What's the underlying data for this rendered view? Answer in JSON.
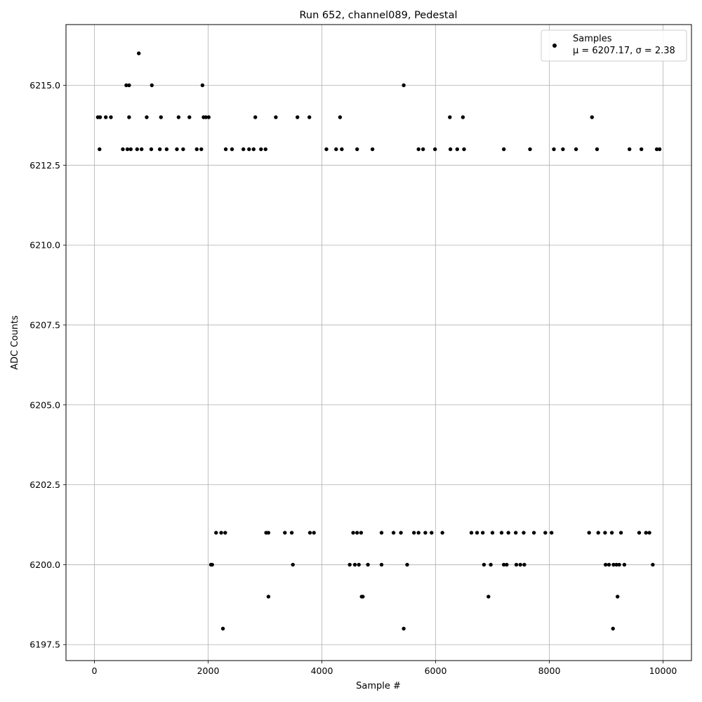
{
  "chart_data": {
    "type": "scatter",
    "title": "Run 652, channel089, Pedestal",
    "xlabel": "Sample #",
    "ylabel": "ADC Counts",
    "xlim": [
      -500,
      10500
    ],
    "ylim": [
      6197.0,
      6216.9
    ],
    "xticks": [
      0,
      2000,
      4000,
      6000,
      8000,
      10000
    ],
    "yticks": [
      6197.5,
      6200.0,
      6202.5,
      6205.0,
      6207.5,
      6210.0,
      6212.5,
      6215.0
    ],
    "xtick_labels": [
      "0",
      "2000",
      "4000",
      "6000",
      "8000",
      "10000"
    ],
    "ytick_labels": [
      "6197.5",
      "6200.0",
      "6202.5",
      "6205.0",
      "6207.5",
      "6210.0",
      "6212.5",
      "6215.0"
    ],
    "grid": true,
    "legend_position": "top-right",
    "marker_color": "#000000",
    "series": [
      {
        "name": "Samples",
        "legend_stats": "μ = 6207.17, σ = 2.38",
        "points": [
          [
            780,
            6216
          ],
          [
            560,
            6215
          ],
          [
            610,
            6215
          ],
          [
            1010,
            6215
          ],
          [
            1900,
            6215
          ],
          [
            5440,
            6215
          ],
          [
            60,
            6214
          ],
          [
            100,
            6214
          ],
          [
            200,
            6214
          ],
          [
            290,
            6214
          ],
          [
            610,
            6214
          ],
          [
            920,
            6214
          ],
          [
            1170,
            6214
          ],
          [
            1480,
            6214
          ],
          [
            1670,
            6214
          ],
          [
            1920,
            6214
          ],
          [
            1960,
            6214
          ],
          [
            2010,
            6214
          ],
          [
            2830,
            6214
          ],
          [
            3190,
            6214
          ],
          [
            3570,
            6214
          ],
          [
            3780,
            6214
          ],
          [
            4320,
            6214
          ],
          [
            6250,
            6214
          ],
          [
            6480,
            6214
          ],
          [
            8750,
            6214
          ],
          [
            90,
            6213
          ],
          [
            500,
            6213
          ],
          [
            580,
            6213
          ],
          [
            640,
            6213
          ],
          [
            750,
            6213
          ],
          [
            830,
            6213
          ],
          [
            1000,
            6213
          ],
          [
            1150,
            6213
          ],
          [
            1270,
            6213
          ],
          [
            1450,
            6213
          ],
          [
            1560,
            6213
          ],
          [
            1800,
            6213
          ],
          [
            1880,
            6213
          ],
          [
            2310,
            6213
          ],
          [
            2420,
            6213
          ],
          [
            2620,
            6213
          ],
          [
            2720,
            6213
          ],
          [
            2800,
            6213
          ],
          [
            2930,
            6213
          ],
          [
            3010,
            6213
          ],
          [
            4080,
            6213
          ],
          [
            4250,
            6213
          ],
          [
            4350,
            6213
          ],
          [
            4620,
            6213
          ],
          [
            4890,
            6213
          ],
          [
            5700,
            6213
          ],
          [
            5780,
            6213
          ],
          [
            5990,
            6213
          ],
          [
            6260,
            6213
          ],
          [
            6380,
            6213
          ],
          [
            6500,
            6213
          ],
          [
            7200,
            6213
          ],
          [
            7660,
            6213
          ],
          [
            8080,
            6213
          ],
          [
            8240,
            6213
          ],
          [
            8470,
            6213
          ],
          [
            8840,
            6213
          ],
          [
            9410,
            6213
          ],
          [
            9620,
            6213
          ],
          [
            9890,
            6213
          ],
          [
            9940,
            6213
          ],
          [
            5440,
            6198
          ],
          [
            9200,
            6199
          ],
          [
            6930,
            6199
          ],
          [
            4700,
            6199
          ],
          [
            4720,
            6199
          ],
          [
            3060,
            6199
          ],
          [
            2260,
            6198
          ],
          [
            9120,
            6198
          ],
          [
            2050,
            6200
          ],
          [
            2070,
            6200
          ],
          [
            3490,
            6200
          ],
          [
            4490,
            6200
          ],
          [
            4580,
            6200
          ],
          [
            4650,
            6200
          ],
          [
            4810,
            6200
          ],
          [
            5050,
            6200
          ],
          [
            5500,
            6200
          ],
          [
            6850,
            6200
          ],
          [
            6970,
            6200
          ],
          [
            7200,
            6200
          ],
          [
            7250,
            6200
          ],
          [
            7420,
            6200
          ],
          [
            7490,
            6200
          ],
          [
            7560,
            6200
          ],
          [
            8990,
            6200
          ],
          [
            9050,
            6200
          ],
          [
            9130,
            6200
          ],
          [
            9180,
            6200
          ],
          [
            9230,
            6200
          ],
          [
            9320,
            6200
          ],
          [
            9820,
            6200
          ],
          [
            2140,
            6201
          ],
          [
            2230,
            6201
          ],
          [
            2300,
            6201
          ],
          [
            3020,
            6201
          ],
          [
            3060,
            6201
          ],
          [
            3350,
            6201
          ],
          [
            3470,
            6201
          ],
          [
            3790,
            6201
          ],
          [
            3860,
            6201
          ],
          [
            4550,
            6201
          ],
          [
            4620,
            6201
          ],
          [
            4690,
            6201
          ],
          [
            5050,
            6201
          ],
          [
            5260,
            6201
          ],
          [
            5390,
            6201
          ],
          [
            5620,
            6201
          ],
          [
            5700,
            6201
          ],
          [
            5820,
            6201
          ],
          [
            5930,
            6201
          ],
          [
            6120,
            6201
          ],
          [
            6630,
            6201
          ],
          [
            6730,
            6201
          ],
          [
            6830,
            6201
          ],
          [
            7000,
            6201
          ],
          [
            7160,
            6201
          ],
          [
            7280,
            6201
          ],
          [
            7410,
            6201
          ],
          [
            7550,
            6201
          ],
          [
            7730,
            6201
          ],
          [
            7930,
            6201
          ],
          [
            8040,
            6201
          ],
          [
            8700,
            6201
          ],
          [
            8860,
            6201
          ],
          [
            8980,
            6201
          ],
          [
            9100,
            6201
          ],
          [
            9260,
            6201
          ],
          [
            9580,
            6201
          ],
          [
            9700,
            6201
          ],
          [
            9760,
            6201
          ]
        ]
      }
    ]
  }
}
